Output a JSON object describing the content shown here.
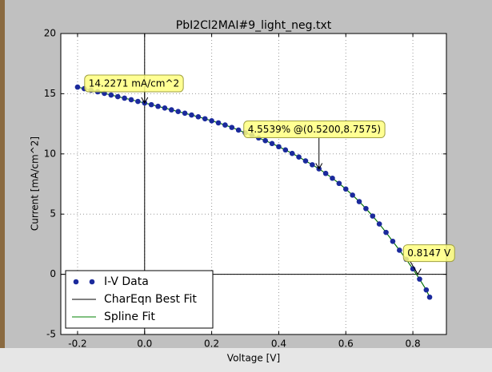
{
  "chart_data": {
    "type": "scatter",
    "title": "PbI2Cl2MAI#9_light_neg.txt",
    "xlabel": "Voltage [V]",
    "ylabel": "Current [mA/cm^2]",
    "xlim": [
      -0.25,
      0.9
    ],
    "ylim": [
      -5,
      20
    ],
    "xticks": [
      -0.2,
      {
        "value": 0,
        "label": "0.0"
      },
      0.2,
      0.4,
      0.6,
      0.8
    ],
    "yticks": [
      -5,
      0,
      5,
      10,
      15,
      20
    ],
    "grid": true,
    "legend": "lower left",
    "x": [
      -0.2,
      -0.18,
      -0.16,
      -0.14,
      -0.12,
      -0.1,
      -0.08,
      -0.06,
      -0.04,
      -0.02,
      0,
      0.02,
      0.04,
      0.06,
      0.08,
      0.1,
      0.12,
      0.14,
      0.16,
      0.18,
      0.2,
      0.22,
      0.24,
      0.26,
      0.28,
      0.3,
      0.32,
      0.34,
      0.36,
      0.38,
      0.4,
      0.42,
      0.44,
      0.46,
      0.48,
      0.5,
      0.52,
      0.54,
      0.56,
      0.58,
      0.6,
      0.62,
      0.64,
      0.66,
      0.68,
      0.7,
      0.72,
      0.74,
      0.76,
      0.78,
      0.8,
      0.82,
      0.84,
      0.85
    ],
    "series": [
      {
        "name": "I-V Data",
        "color": "#1b2a9c",
        "style": "dots",
        "values": [
          15.55,
          15.42,
          15.29,
          15.16,
          15.03,
          14.89,
          14.76,
          14.63,
          14.5,
          14.36,
          14.23,
          14.09,
          13.95,
          13.81,
          13.66,
          13.52,
          13.38,
          13.23,
          13.08,
          12.92,
          12.75,
          12.58,
          12.4,
          12.2,
          11.98,
          11.75,
          11.55,
          11.33,
          11.1,
          10.86,
          10.6,
          10.33,
          10.04,
          9.74,
          9.42,
          9.1,
          8.76,
          8.38,
          7.98,
          7.55,
          7.08,
          6.58,
          6.04,
          5.46,
          4.84,
          4.18,
          3.48,
          2.74,
          2.0,
          1.25,
          0.45,
          -0.4,
          -1.3,
          -1.9
        ]
      },
      {
        "name": "CharEqn Best Fit",
        "color": "#000000",
        "style": "line",
        "values": [
          15.55,
          15.42,
          15.29,
          15.16,
          15.03,
          14.89,
          14.76,
          14.63,
          14.5,
          14.36,
          14.23,
          14.09,
          13.95,
          13.81,
          13.66,
          13.52,
          13.38,
          13.23,
          13.08,
          12.92,
          12.75,
          12.58,
          12.4,
          12.2,
          11.98,
          11.75,
          11.55,
          11.33,
          11.1,
          10.86,
          10.6,
          10.33,
          10.04,
          9.74,
          9.42,
          9.1,
          8.76,
          8.38,
          7.98,
          7.55,
          7.08,
          6.58,
          6.04,
          5.46,
          4.84,
          4.18,
          3.48,
          2.74,
          2.0,
          1.25,
          0.45,
          -0.4,
          -1.3,
          -1.9
        ]
      },
      {
        "name": "Spline Fit",
        "color": "#008000",
        "style": "line",
        "values": [
          15.55,
          15.42,
          15.29,
          15.16,
          15.03,
          14.89,
          14.76,
          14.63,
          14.5,
          14.36,
          14.23,
          14.09,
          13.95,
          13.81,
          13.66,
          13.52,
          13.38,
          13.23,
          13.08,
          12.92,
          12.75,
          12.58,
          12.4,
          12.2,
          11.98,
          11.75,
          11.55,
          11.33,
          11.1,
          10.86,
          10.6,
          10.33,
          10.04,
          9.74,
          9.42,
          9.1,
          8.76,
          8.38,
          7.98,
          7.55,
          7.08,
          6.58,
          6.04,
          5.46,
          4.84,
          4.18,
          3.48,
          2.74,
          2.0,
          1.25,
          0.45,
          -0.4,
          -1.3,
          -1.9
        ]
      }
    ],
    "annotations": [
      {
        "text": "14.2271 mA/cm^2",
        "x": 0,
        "y": 14.2271
      },
      {
        "text": "4.5539% @(0.5200,8.7575)",
        "x": 0.52,
        "y": 8.7575
      },
      {
        "text": "0.8147 V",
        "x": 0.8147,
        "y": 0
      }
    ]
  }
}
